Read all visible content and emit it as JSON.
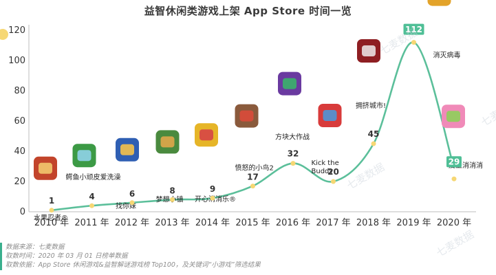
{
  "title": "益智休闲类游戏上架 App Store 时间一览",
  "watermark": "七麦数据",
  "footer": {
    "source": "数据来源：七麦数据",
    "time": "取数时间：2020 年 03 月 01 日榜单数据",
    "basis": "取数依据：App Store 休闲游戏&益智解谜游戏榜 Top100，及关键词“小游戏”筛选结果"
  },
  "chart_data": {
    "type": "line",
    "title": "益智休闲类游戏上架 App Store 时间一览",
    "categories": [
      "2010 年",
      "2011 年",
      "2012 年",
      "2013 年",
      "2014 年",
      "2015 年",
      "2016 年",
      "2017 年",
      "2018 年",
      "2019 年",
      "2020 年"
    ],
    "values": [
      1,
      4,
      6,
      8,
      9,
      17,
      32,
      20,
      45,
      112,
      29
    ],
    "ylim": [
      0,
      120
    ],
    "yticks": [
      0,
      20,
      40,
      60,
      80,
      100,
      120
    ],
    "grid": false,
    "line_color": "#5bbf9a",
    "marker_color": "#f6d774",
    "highlight_color": "#4fbf96",
    "annotations": [
      {
        "year_index": 0,
        "label": "水果忍者®",
        "icon": "fruit-ninja-icon"
      },
      {
        "year_index": 1,
        "label": "鳄鱼小顽皮爱洗澡",
        "icon": "swampy-crocodile-icon"
      },
      {
        "year_index": 2,
        "label": "找你妹",
        "icon": "find-it-icon"
      },
      {
        "year_index": 3,
        "label": "梦想小镇",
        "icon": "dream-town-icon"
      },
      {
        "year_index": 4,
        "label": "开心消消乐®",
        "icon": "happy-elimination-icon"
      },
      {
        "year_index": 5,
        "label": "愤怒的小鸟2",
        "icon": "angry-birds-2-icon"
      },
      {
        "year_index": 6,
        "label": "方块大作战",
        "icon": "block-battle-icon"
      },
      {
        "year_index": 7,
        "label": "Kick the Buddy",
        "icon": "kick-the-buddy-icon"
      },
      {
        "year_index": 8,
        "label": "拥挤城市!",
        "icon": "crowd-city-icon"
      },
      {
        "year_index": 9,
        "label": "消灭病毒",
        "icon": "virus-killer-icon"
      },
      {
        "year_index": 10,
        "label": "爱上消消消",
        "icon": "love-elimination-icon"
      }
    ]
  }
}
